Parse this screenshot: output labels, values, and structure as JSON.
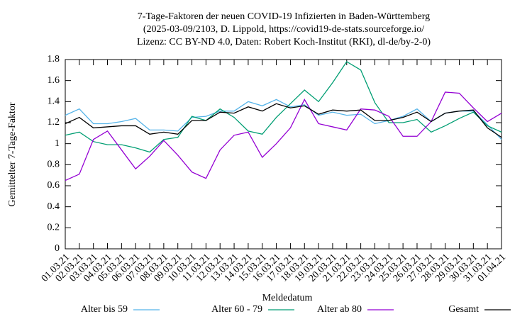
{
  "chart_data": {
    "type": "line",
    "title_lines": [
      "7-Tage-Faktoren der neuen COVID-19 Infizierten in Baden-Württemberg",
      "(2025-03-09/2103, D. Lippold, https://covid19-de-stats.sourceforge.io/",
      "Lizenz: CC BY-ND 4.0, Daten: Robert Koch-Institut (RKI), dl-de/by-2-0)"
    ],
    "x_label": "Meldedatum",
    "y_label": "Gemittelter 7-Tage-Faktor",
    "categories": [
      "01.03.21",
      "02.03.21",
      "03.03.21",
      "04.03.21",
      "05.03.21",
      "06.03.21",
      "07.03.21",
      "08.03.21",
      "09.03.21",
      "10.03.21",
      "11.03.21",
      "12.03.21",
      "13.03.21",
      "14.03.21",
      "15.03.21",
      "16.03.21",
      "17.03.21",
      "18.03.21",
      "19.03.21",
      "20.03.21",
      "21.03.21",
      "22.03.21",
      "23.03.21",
      "24.03.21",
      "25.03.21",
      "26.03.21",
      "27.03.21",
      "28.03.21",
      "29.03.21",
      "30.03.21",
      "31.03.21",
      "01.04.21"
    ],
    "series": [
      {
        "name": "Alter bis 59",
        "color": "#56b4e9",
        "values": [
          1.27,
          1.33,
          1.19,
          1.19,
          1.21,
          1.24,
          1.13,
          1.13,
          1.12,
          1.25,
          1.26,
          1.31,
          1.31,
          1.4,
          1.36,
          1.42,
          1.35,
          1.37,
          1.27,
          1.3,
          1.27,
          1.28,
          1.19,
          1.22,
          1.26,
          1.33,
          1.21,
          1.29,
          1.31,
          1.31,
          1.18,
          1.04
        ]
      },
      {
        "name": "Alter 60 - 79",
        "color": "#009e73",
        "values": [
          1.08,
          1.11,
          1.02,
          0.99,
          0.99,
          0.96,
          0.92,
          1.04,
          1.06,
          1.26,
          1.22,
          1.33,
          1.25,
          1.12,
          1.09,
          1.25,
          1.38,
          1.51,
          1.4,
          1.58,
          1.78,
          1.7,
          1.39,
          1.2,
          1.2,
          1.23,
          1.11,
          1.17,
          1.24,
          1.3,
          1.17,
          1.11
        ]
      },
      {
        "name": "Alter ab 80",
        "color": "#9400d3",
        "values": [
          0.65,
          0.71,
          1.04,
          1.12,
          0.94,
          0.76,
          0.88,
          1.03,
          0.89,
          0.73,
          0.67,
          0.94,
          1.08,
          1.11,
          0.87,
          1.0,
          1.15,
          1.42,
          1.19,
          1.16,
          1.13,
          1.33,
          1.32,
          1.26,
          1.07,
          1.07,
          1.21,
          1.49,
          1.48,
          1.34,
          1.21,
          1.29
        ]
      },
      {
        "name": "Gesamt",
        "color": "#000000",
        "values": [
          1.19,
          1.25,
          1.15,
          1.16,
          1.17,
          1.17,
          1.09,
          1.11,
          1.09,
          1.22,
          1.22,
          1.3,
          1.29,
          1.35,
          1.31,
          1.38,
          1.34,
          1.36,
          1.28,
          1.32,
          1.31,
          1.32,
          1.22,
          1.22,
          1.25,
          1.3,
          1.21,
          1.29,
          1.31,
          1.32,
          1.15,
          1.06
        ]
      }
    ],
    "ylim": [
      0,
      1.8
    ],
    "yticks": [
      0,
      0.2,
      0.4,
      0.6,
      0.8,
      1,
      1.2,
      1.4,
      1.6,
      1.8
    ]
  }
}
